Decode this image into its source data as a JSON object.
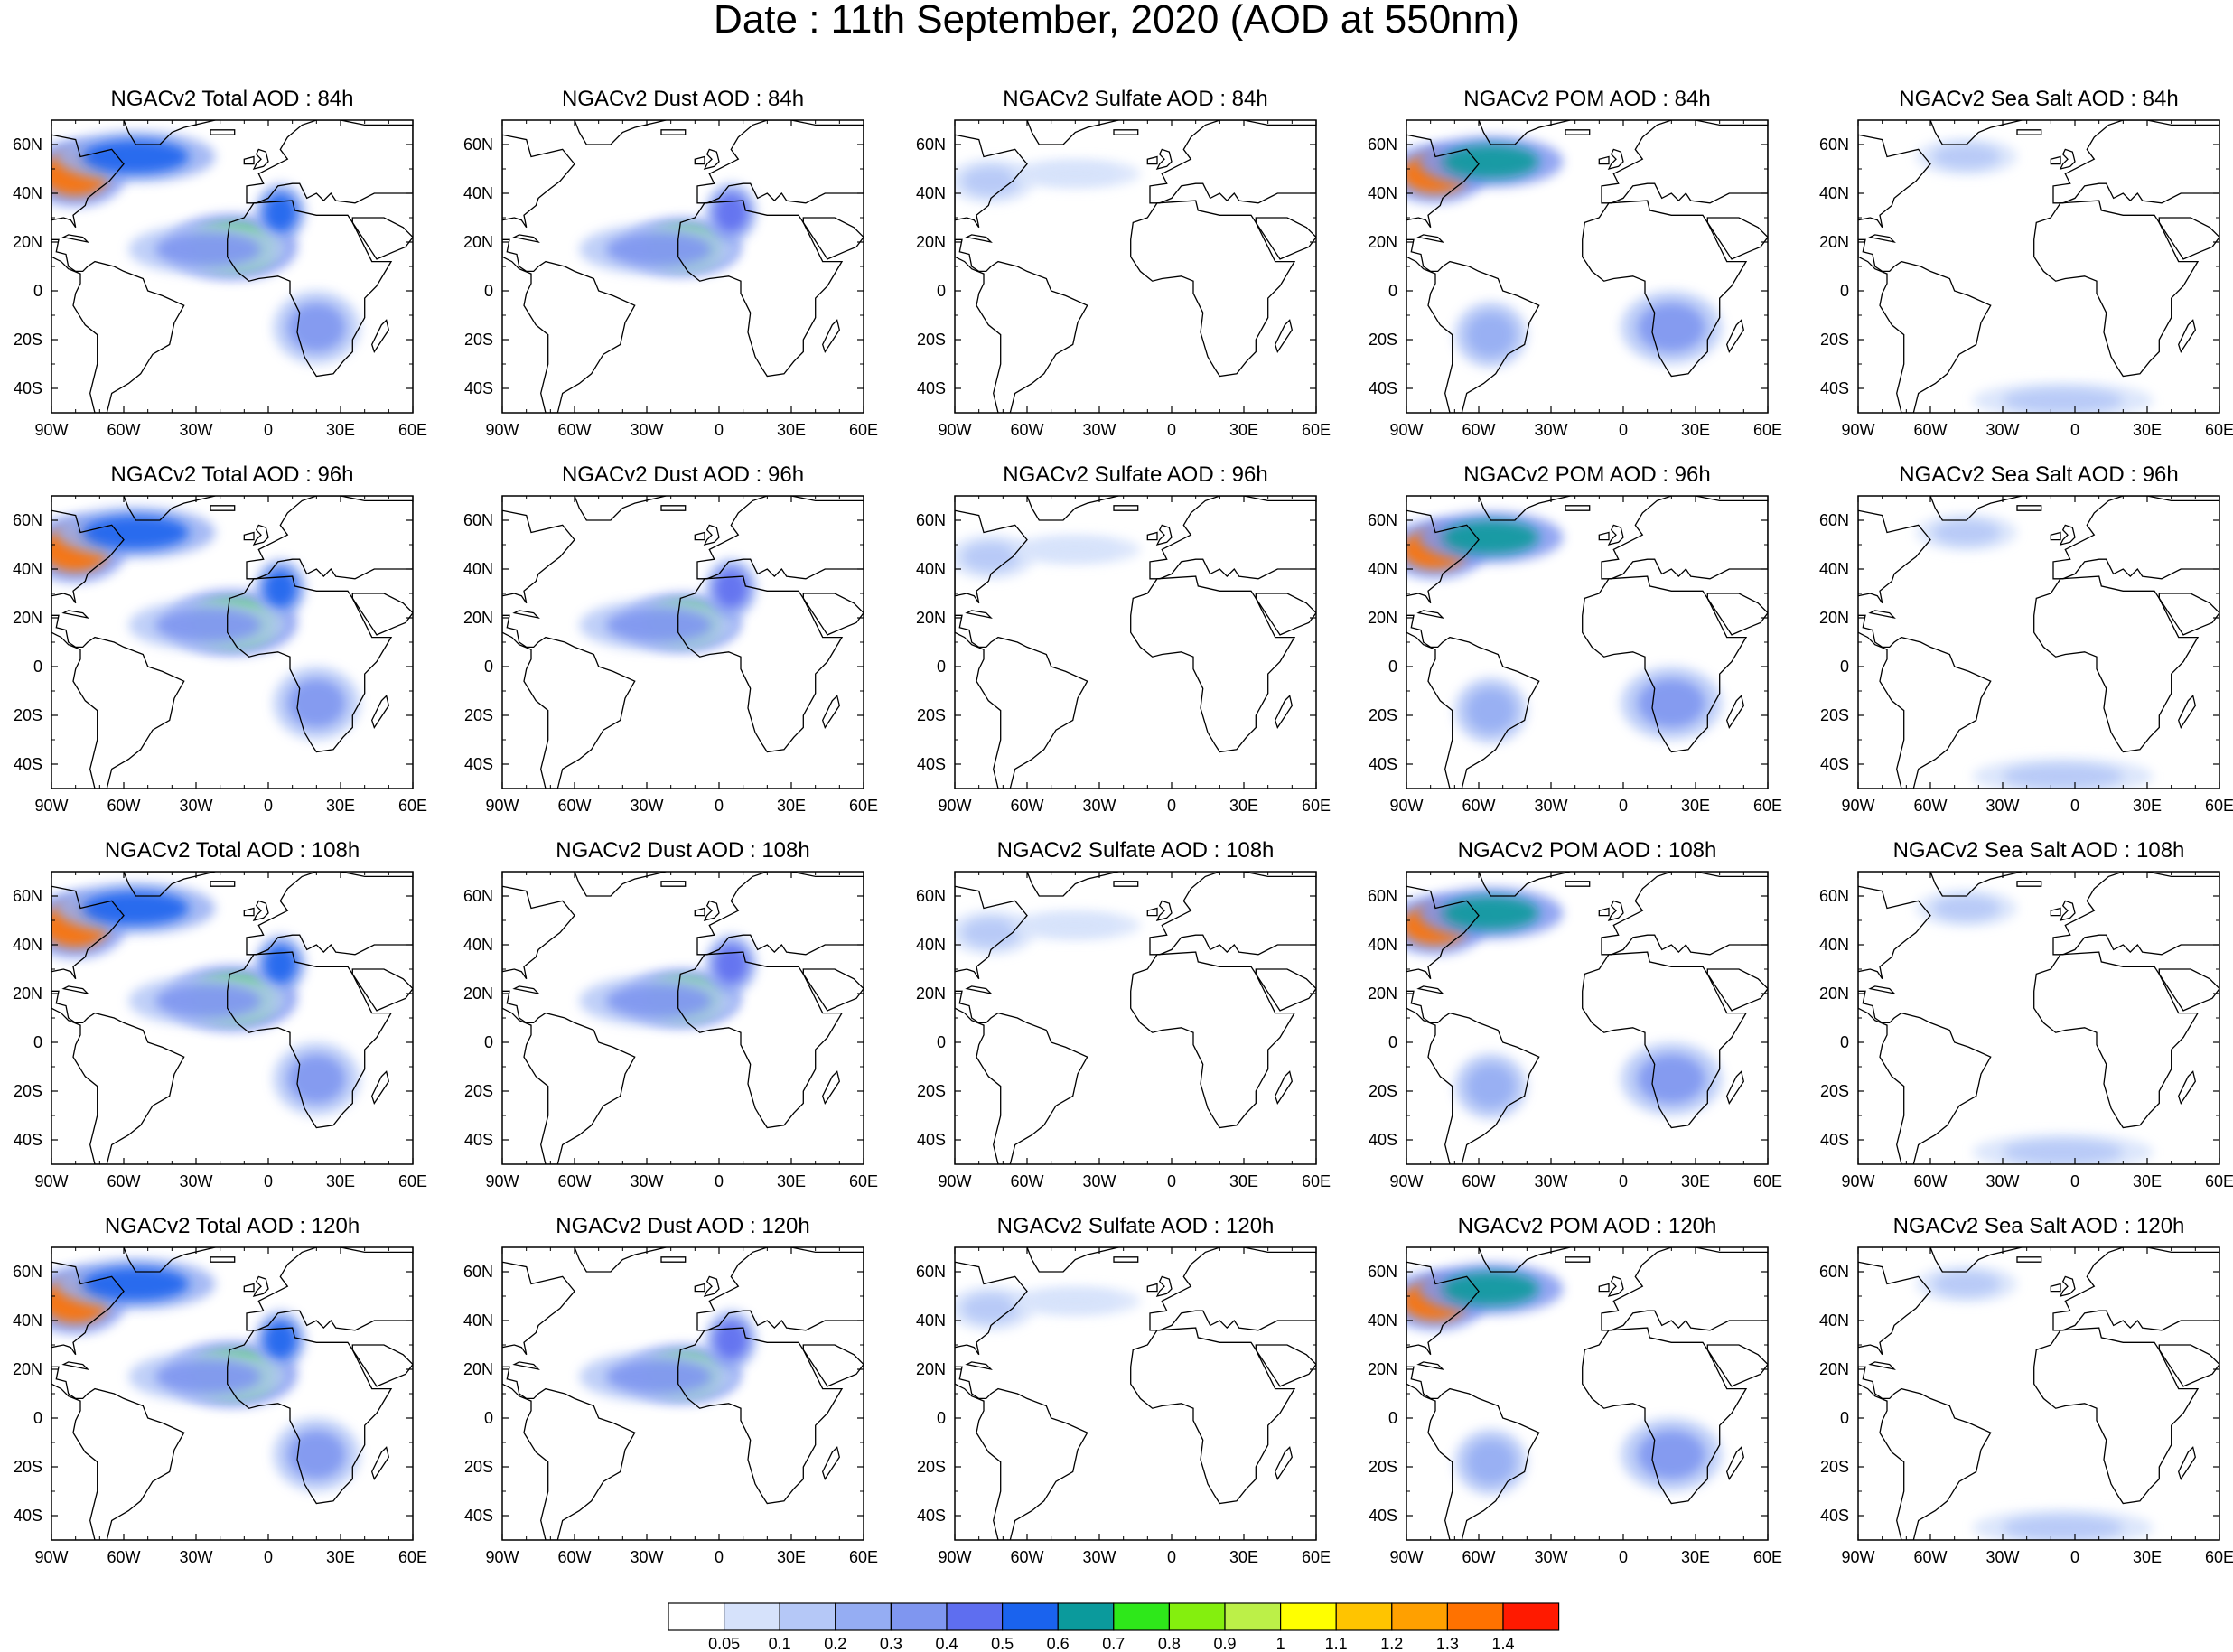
{
  "title": "Date : 11th September, 2020 (AOD at 550nm)",
  "columns": [
    {
      "prefix": "NGACv2 Total AOD",
      "key": "total"
    },
    {
      "prefix": "NGACv2 Dust AOD",
      "key": "dust"
    },
    {
      "prefix": "NGACv2 Sulfate AOD",
      "key": "sulfate"
    },
    {
      "prefix": "NGACv2 POM AOD",
      "key": "pom"
    },
    {
      "prefix": "NGACv2 Sea Salt AOD",
      "key": "seasalt"
    }
  ],
  "rows": [
    {
      "hour": "84h"
    },
    {
      "hour": "96h"
    },
    {
      "hour": "108h"
    },
    {
      "hour": "120h"
    }
  ],
  "last_seasalt_prefix": "NGACv2 Sea Salt  AOD",
  "x_ticks": [
    {
      "lon": -90,
      "label": "90W"
    },
    {
      "lon": -60,
      "label": "60W"
    },
    {
      "lon": -30,
      "label": "30W"
    },
    {
      "lon": 0,
      "label": "0"
    },
    {
      "lon": 30,
      "label": "30E"
    },
    {
      "lon": 60,
      "label": "60E"
    }
  ],
  "y_ticks": [
    {
      "lat": 60,
      "label": "60N"
    },
    {
      "lat": 40,
      "label": "40N"
    },
    {
      "lat": 20,
      "label": "20N"
    },
    {
      "lat": 0,
      "label": "0"
    },
    {
      "lat": -20,
      "label": "20S"
    },
    {
      "lat": -40,
      "label": "40S"
    }
  ],
  "map_extent": {
    "lon_min": -90,
    "lon_max": 60,
    "lat_min": -50,
    "lat_max": 70
  },
  "colorbar": {
    "colors": [
      "#ffffff",
      "#d6e2fb",
      "#b5c8f7",
      "#95adf3",
      "#7f96f0",
      "#5e6ef0",
      "#1a63ee",
      "#0b9a9c",
      "#2ee81a",
      "#84ef0e",
      "#bcf048",
      "#ffff00",
      "#ffc400",
      "#ffa000",
      "#ff7200",
      "#ff1a00"
    ],
    "labels": [
      "0.05",
      "0.1",
      "0.2",
      "0.3",
      "0.4",
      "0.5",
      "0.6",
      "0.7",
      "0.8",
      "0.9",
      "1",
      "1.1",
      "1.2",
      "1.3",
      "1.4"
    ]
  },
  "plumes": {
    "total": [
      {
        "lon": -15,
        "lat": 18,
        "rx": 18,
        "ry": 9,
        "level": 8
      },
      {
        "lon": 5,
        "lat": 32,
        "rx": 7,
        "ry": 8,
        "level": 6
      },
      {
        "lon": -25,
        "lat": 17,
        "rx": 22,
        "ry": 7,
        "level": 4
      },
      {
        "lon": -80,
        "lat": 48,
        "rx": 14,
        "ry": 9,
        "level": 14
      },
      {
        "lon": -55,
        "lat": 55,
        "rx": 22,
        "ry": 7,
        "level": 6
      },
      {
        "lon": 20,
        "lat": -15,
        "rx": 12,
        "ry": 10,
        "level": 4
      }
    ],
    "dust": [
      {
        "lon": -15,
        "lat": 18,
        "rx": 16,
        "ry": 8,
        "level": 8
      },
      {
        "lon": -25,
        "lat": 17,
        "rx": 22,
        "ry": 7,
        "level": 4
      },
      {
        "lon": 5,
        "lat": 32,
        "rx": 7,
        "ry": 8,
        "level": 5
      }
    ],
    "sulfate": [
      {
        "lon": -75,
        "lat": 45,
        "rx": 12,
        "ry": 6,
        "level": 2
      },
      {
        "lon": -40,
        "lat": 48,
        "rx": 18,
        "ry": 4,
        "level": 1
      }
    ],
    "pom": [
      {
        "lon": -78,
        "lat": 48,
        "rx": 14,
        "ry": 8,
        "level": 14
      },
      {
        "lon": -55,
        "lat": 53,
        "rx": 20,
        "ry": 7,
        "level": 7
      },
      {
        "lon": 20,
        "lat": -15,
        "rx": 14,
        "ry": 10,
        "level": 4
      },
      {
        "lon": -55,
        "lat": -18,
        "rx": 10,
        "ry": 9,
        "level": 3
      }
    ],
    "seasalt": [
      {
        "lon": -45,
        "lat": 55,
        "rx": 14,
        "ry": 5,
        "level": 2
      },
      {
        "lon": -5,
        "lat": -45,
        "rx": 25,
        "ry": 5,
        "level": 2
      }
    ]
  }
}
